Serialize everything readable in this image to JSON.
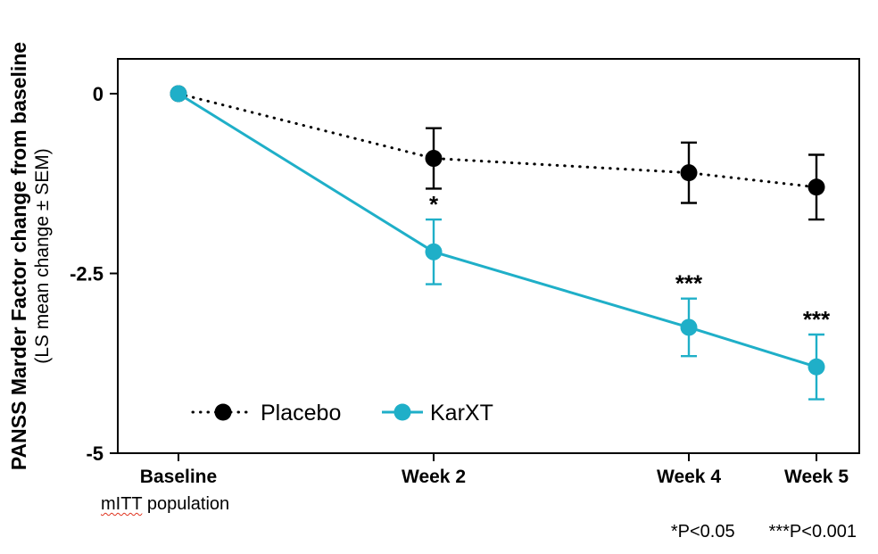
{
  "chart_data": {
    "type": "line",
    "title": "",
    "categories": [
      "Baseline",
      "Week 2",
      "Week 4",
      "Week 5"
    ],
    "x_weeks": [
      0,
      2,
      4,
      5
    ],
    "ylabel_main": "PANSS Marder Factor change from baseline",
    "ylabel_sub": "(LS mean change ± SEM)",
    "ylim": [
      -5,
      0
    ],
    "yticks": [
      0,
      -2.5,
      -5
    ],
    "ytick_labels": [
      "0",
      "-2.5",
      "-5"
    ],
    "grid": false,
    "legend_position": "bottom-inside",
    "series": [
      {
        "name": "Placebo",
        "color": "#000000",
        "style": "dotted",
        "values": [
          0,
          -0.9,
          -1.1,
          -1.3
        ],
        "sem": [
          0,
          0.42,
          0.42,
          0.45
        ],
        "significance": [
          "",
          "",
          "",
          ""
        ]
      },
      {
        "name": "KarXT",
        "color": "#1FAFC8",
        "style": "solid",
        "values": [
          0,
          -2.2,
          -3.25,
          -3.8
        ],
        "sem": [
          0,
          0.45,
          0.4,
          0.45
        ],
        "significance": [
          "",
          "*",
          "***",
          "***"
        ]
      }
    ]
  },
  "footnotes": {
    "population_word": "mITT",
    "population_rest": " population",
    "p1": "*P<0.05",
    "p2": "***P<0.001"
  }
}
